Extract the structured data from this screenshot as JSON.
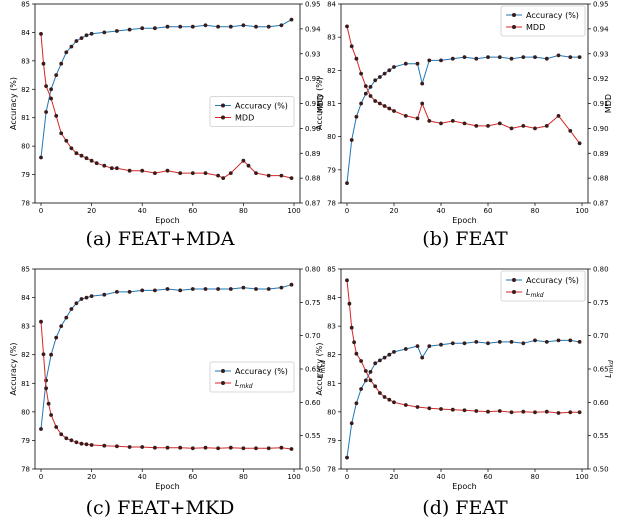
{
  "colors": {
    "accuracy": "#1f77b4",
    "second": "#d62728",
    "marker": "#3a1b1b"
  },
  "chart_data": [
    {
      "type": "line",
      "caption": "(a) FEAT+MDA",
      "xlabel": "Epoch",
      "ylabel_left": "Accuracy (%)",
      "ylabel_right": "MDD",
      "xlim": [
        0,
        100
      ],
      "ylim_left": [
        78,
        85
      ],
      "ylim_right": [
        0.87,
        0.95
      ],
      "xticks": [
        "0",
        "20",
        "40",
        "60",
        "80",
        "100"
      ],
      "yticks_left": [
        "78",
        "79",
        "80",
        "81",
        "82",
        "83",
        "84",
        "85"
      ],
      "yticks_right": [
        "0.87",
        "0.88",
        "0.89",
        "0.90",
        "0.91",
        "0.92",
        "0.93",
        "0.94",
        "0.95"
      ],
      "legend_position": "center-right",
      "series": [
        {
          "name": "Accuracy (%)",
          "axis": "left",
          "color": "#1f77b4",
          "x": [
            0,
            2,
            4,
            6,
            8,
            10,
            12,
            14,
            16,
            18,
            20,
            25,
            30,
            35,
            40,
            45,
            50,
            55,
            60,
            65,
            70,
            75,
            80,
            85,
            90,
            95,
            99
          ],
          "y": [
            79.6,
            81.2,
            82.0,
            82.5,
            82.9,
            83.3,
            83.5,
            83.7,
            83.8,
            83.9,
            83.95,
            84.0,
            84.05,
            84.1,
            84.15,
            84.15,
            84.2,
            84.2,
            84.2,
            84.25,
            84.2,
            84.2,
            84.25,
            84.2,
            84.2,
            84.25,
            84.45
          ]
        },
        {
          "name": "MDD",
          "axis": "right",
          "color": "#d62728",
          "x": [
            0,
            1,
            2,
            4,
            6,
            8,
            10,
            12,
            14,
            16,
            18,
            20,
            22,
            25,
            28,
            30,
            35,
            40,
            45,
            50,
            55,
            60,
            65,
            70,
            72,
            75,
            80,
            82,
            85,
            90,
            95,
            99
          ],
          "y": [
            0.938,
            0.926,
            0.917,
            0.912,
            0.905,
            0.898,
            0.895,
            0.892,
            0.89,
            0.889,
            0.888,
            0.887,
            0.886,
            0.885,
            0.884,
            0.884,
            0.883,
            0.883,
            0.882,
            0.883,
            0.882,
            0.882,
            0.882,
            0.881,
            0.88,
            0.882,
            0.887,
            0.885,
            0.882,
            0.881,
            0.881,
            0.88
          ]
        }
      ]
    },
    {
      "type": "line",
      "caption": "(b) FEAT",
      "xlabel": "Epoch",
      "ylabel_left": "Accuracy (%)",
      "ylabel_right": "MDD",
      "xlim": [
        0,
        100
      ],
      "ylim_left": [
        78,
        84
      ],
      "ylim_right": [
        0.87,
        0.95
      ],
      "xticks": [
        "0",
        "20",
        "40",
        "60",
        "80",
        "100"
      ],
      "yticks_left": [
        "78",
        "79",
        "80",
        "81",
        "82",
        "83",
        "84"
      ],
      "yticks_right": [
        "0.87",
        "0.88",
        "0.89",
        "0.90",
        "0.91",
        "0.92",
        "0.93",
        "0.94",
        "0.95"
      ],
      "legend_position": "top-right",
      "series": [
        {
          "name": "Accuracy (%)",
          "axis": "left",
          "color": "#1f77b4",
          "x": [
            0,
            2,
            4,
            6,
            8,
            10,
            12,
            14,
            16,
            18,
            20,
            25,
            30,
            32,
            35,
            40,
            45,
            50,
            55,
            60,
            65,
            70,
            75,
            80,
            85,
            90,
            95,
            99
          ],
          "y": [
            78.6,
            79.9,
            80.6,
            81.0,
            81.3,
            81.5,
            81.7,
            81.8,
            81.9,
            82.0,
            82.1,
            82.2,
            82.2,
            81.6,
            82.3,
            82.3,
            82.35,
            82.4,
            82.35,
            82.4,
            82.4,
            82.35,
            82.4,
            82.4,
            82.35,
            82.45,
            82.4,
            82.4
          ]
        },
        {
          "name": "MDD",
          "axis": "right",
          "color": "#d62728",
          "x": [
            0,
            2,
            4,
            6,
            8,
            10,
            12,
            14,
            16,
            18,
            20,
            25,
            30,
            32,
            35,
            40,
            45,
            50,
            55,
            60,
            65,
            70,
            75,
            80,
            85,
            90,
            95,
            99
          ],
          "y": [
            0.941,
            0.933,
            0.928,
            0.922,
            0.917,
            0.913,
            0.911,
            0.91,
            0.909,
            0.908,
            0.907,
            0.905,
            0.904,
            0.91,
            0.903,
            0.902,
            0.903,
            0.902,
            0.901,
            0.901,
            0.902,
            0.9,
            0.901,
            0.9,
            0.901,
            0.905,
            0.899,
            0.894
          ]
        }
      ]
    },
    {
      "type": "line",
      "caption": "(c) FEAT+MKD",
      "xlabel": "Epoch",
      "ylabel_left": "Accuracy (%)",
      "ylabel_right": "Lmkd",
      "xlim": [
        0,
        100
      ],
      "ylim_left": [
        78,
        85
      ],
      "ylim_right": [
        0.5,
        0.8
      ],
      "xticks": [
        "0",
        "20",
        "40",
        "60",
        "80",
        "100"
      ],
      "yticks_left": [
        "78",
        "79",
        "80",
        "81",
        "82",
        "83",
        "84",
        "85"
      ],
      "yticks_right": [
        "0.50",
        "0.55",
        "0.60",
        "0.65",
        "0.70",
        "0.75",
        "0.80"
      ],
      "legend_position": "center-right",
      "series": [
        {
          "name": "Accuracy (%)",
          "axis": "left",
          "color": "#1f77b4",
          "x": [
            0,
            2,
            4,
            6,
            8,
            10,
            12,
            14,
            16,
            18,
            20,
            25,
            30,
            35,
            40,
            45,
            50,
            55,
            60,
            65,
            70,
            75,
            80,
            85,
            90,
            95,
            99
          ],
          "y": [
            79.4,
            81.1,
            82.0,
            82.6,
            83.0,
            83.3,
            83.6,
            83.8,
            83.95,
            84.0,
            84.05,
            84.1,
            84.2,
            84.2,
            84.25,
            84.25,
            84.3,
            84.25,
            84.3,
            84.3,
            84.3,
            84.3,
            84.35,
            84.3,
            84.3,
            84.35,
            84.45
          ]
        },
        {
          "name": "Lmkd",
          "axis": "right",
          "color": "#d62728",
          "x": [
            0,
            1,
            2,
            3,
            4,
            6,
            8,
            10,
            12,
            14,
            16,
            18,
            20,
            25,
            30,
            35,
            40,
            45,
            50,
            55,
            60,
            65,
            70,
            75,
            80,
            85,
            90,
            95,
            99
          ],
          "y": [
            0.721,
            0.672,
            0.621,
            0.598,
            0.581,
            0.563,
            0.552,
            0.546,
            0.543,
            0.54,
            0.538,
            0.537,
            0.536,
            0.535,
            0.534,
            0.533,
            0.533,
            0.532,
            0.532,
            0.532,
            0.531,
            0.532,
            0.531,
            0.532,
            0.531,
            0.531,
            0.531,
            0.532,
            0.53
          ]
        }
      ]
    },
    {
      "type": "line",
      "caption": "(d) FEAT",
      "xlabel": "Epoch",
      "ylabel_left": "Accuracy (%)",
      "ylabel_right": "Lmkd",
      "xlim": [
        0,
        100
      ],
      "ylim_left": [
        78,
        85
      ],
      "ylim_right": [
        0.5,
        0.8
      ],
      "xticks": [
        "0",
        "20",
        "40",
        "60",
        "80",
        "100"
      ],
      "yticks_left": [
        "78",
        "79",
        "80",
        "81",
        "82",
        "83",
        "84",
        "85"
      ],
      "yticks_right": [
        "0.50",
        "0.55",
        "0.60",
        "0.65",
        "0.70",
        "0.75",
        "0.80"
      ],
      "legend_position": "top-right",
      "series": [
        {
          "name": "Accuracy (%)",
          "axis": "left",
          "color": "#1f77b4",
          "x": [
            0,
            2,
            4,
            6,
            8,
            10,
            12,
            14,
            16,
            18,
            20,
            25,
            30,
            32,
            35,
            40,
            45,
            50,
            55,
            60,
            65,
            70,
            75,
            80,
            85,
            90,
            95,
            99
          ],
          "y": [
            78.4,
            79.6,
            80.3,
            80.8,
            81.1,
            81.4,
            81.7,
            81.8,
            81.9,
            82.0,
            82.1,
            82.2,
            82.3,
            81.9,
            82.3,
            82.35,
            82.4,
            82.4,
            82.45,
            82.4,
            82.45,
            82.45,
            82.4,
            82.5,
            82.45,
            82.5,
            82.5,
            82.45
          ]
        },
        {
          "name": "Lmkd",
          "axis": "right",
          "color": "#d62728",
          "x": [
            0,
            1,
            2,
            3,
            4,
            6,
            8,
            10,
            12,
            14,
            16,
            18,
            20,
            25,
            30,
            35,
            40,
            45,
            50,
            55,
            60,
            65,
            70,
            75,
            80,
            85,
            90,
            95,
            99
          ],
          "y": [
            0.783,
            0.748,
            0.712,
            0.69,
            0.673,
            0.662,
            0.647,
            0.633,
            0.624,
            0.614,
            0.608,
            0.604,
            0.6,
            0.596,
            0.593,
            0.591,
            0.59,
            0.589,
            0.588,
            0.587,
            0.586,
            0.587,
            0.585,
            0.586,
            0.585,
            0.586,
            0.584,
            0.585,
            0.585
          ]
        }
      ]
    }
  ]
}
